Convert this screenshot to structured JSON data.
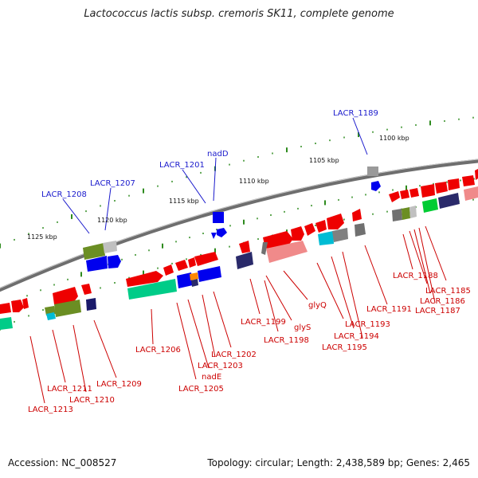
{
  "title": "Lactococcus lactis subsp. cremoris SK11, complete genome",
  "accession": "Accession: NC_008527",
  "topology": "Topology: circular; Length: 2,438,589 bp; Genes: 2,465",
  "scale_labels": [
    "1100 kbp",
    "1105 kbp",
    "1110 kbp",
    "1115 kbp",
    "1120 kbp",
    "1125 kbp"
  ],
  "outer_gene_labels": [
    "LACR_1189",
    "nadD",
    "LACR_1201",
    "LACR_1207",
    "LACR_1208"
  ],
  "inner_gene_labels": [
    "LACR_1188",
    "LACR_1185",
    "LACR_1186",
    "LACR_1187",
    "LACR_1191",
    "glyQ",
    "LACR_1193",
    "LACR_1194",
    "LACR_1195",
    "glyS",
    "LACR_1199",
    "LACR_1198",
    "LACR_1202",
    "LACR_1203",
    "nadE",
    "LACR_1205",
    "LACR_1206",
    "LACR_1209",
    "LACR_1211",
    "LACR_1210",
    "LACR_1213"
  ],
  "colors": {
    "backbone": "#6e6e6e",
    "tick": "#2e8b1e",
    "gene_red": "#ee0000",
    "gene_pink": "#f08a8a",
    "gene_blue": "#0000ee",
    "gene_green": "#00cc88",
    "gene_olive": "#6b8e23",
    "gene_gray": "#808080",
    "gene_navy": "#2a2a6a",
    "gene_cyan": "#00bcd4",
    "gene_orange": "#ff8800",
    "label_red": "#cc0000",
    "label_blue": "#1a1acc"
  }
}
